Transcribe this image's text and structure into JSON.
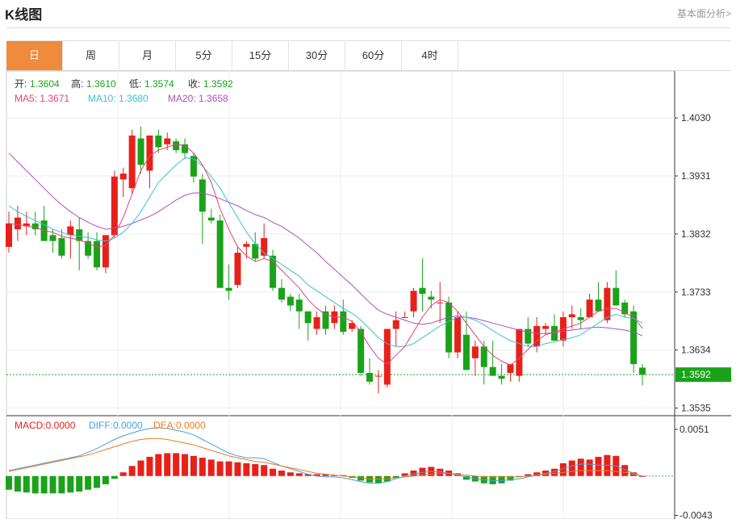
{
  "header": {
    "title": "K线图",
    "link": "基本面分析>"
  },
  "tabs": [
    "日",
    "周",
    "月",
    "5分",
    "15分",
    "30分",
    "60分",
    "4时"
  ],
  "active_tab": 0,
  "ohlc_info": {
    "open_label": "开:",
    "open": "1.3604",
    "high_label": "高:",
    "high": "1.3610",
    "low_label": "低:",
    "low": "1.3574",
    "close_label": "收:",
    "close": "1.3592"
  },
  "ma_info": {
    "ma5": "MA5: 1.3671",
    "ma10": "MA10: 1.3680",
    "ma20": "MA20: 1.3658"
  },
  "macd_info": {
    "macd": "MACD:0.0000",
    "diff": "DIFF:0.0000",
    "dea": "DEA:0.0000"
  },
  "colors": {
    "up": "#e8201a",
    "down": "#1aa31a",
    "ma5": "#e0457a",
    "ma10": "#3cc0d6",
    "ma20": "#b04ec0",
    "accent": "#f08a3c",
    "diff": "#4a9fe0",
    "dea": "#f07a20"
  },
  "chart_data": {
    "type": "candlestick",
    "title": "K线图",
    "price_axis": {
      "ticks": [
        1.403,
        1.3931,
        1.3832,
        1.3733,
        1.3634,
        1.3535
      ],
      "range": [
        1.3522,
        1.411
      ]
    },
    "last_price": 1.3592,
    "last_price_label": "1.3592",
    "candles": [
      [
        1.381,
        1.387,
        1.38,
        1.385
      ],
      [
        1.384,
        1.388,
        1.382,
        1.386
      ],
      [
        1.3845,
        1.387,
        1.383,
        1.385
      ],
      [
        1.385,
        1.387,
        1.383,
        1.384
      ],
      [
        1.3855,
        1.388,
        1.382,
        1.382
      ],
      [
        1.383,
        1.384,
        1.38,
        1.382
      ],
      [
        1.3825,
        1.384,
        1.379,
        1.3795
      ],
      [
        1.383,
        1.3855,
        1.379,
        1.3845
      ],
      [
        1.384,
        1.386,
        1.377,
        1.382
      ],
      [
        1.382,
        1.3835,
        1.379,
        1.3795
      ],
      [
        1.382,
        1.3835,
        1.377,
        1.3775
      ],
      [
        1.3775,
        1.383,
        1.3765,
        1.383
      ],
      [
        1.383,
        1.394,
        1.3825,
        1.393
      ],
      [
        1.3925,
        1.3945,
        1.3895,
        1.3935
      ],
      [
        1.391,
        1.401,
        1.39,
        1.4
      ],
      [
        1.3995,
        1.4015,
        1.3935,
        1.395
      ],
      [
        1.394,
        1.4,
        1.391,
        1.4
      ],
      [
        1.4,
        1.401,
        1.397,
        1.398
      ],
      [
        1.3985,
        1.4005,
        1.3975,
        1.3995
      ],
      [
        1.399,
        1.3995,
        1.397,
        1.3975
      ],
      [
        1.3985,
        1.3995,
        1.396,
        1.397
      ],
      [
        1.3965,
        1.397,
        1.392,
        1.393
      ],
      [
        1.3925,
        1.3935,
        1.3815,
        1.387
      ],
      [
        1.386,
        1.3875,
        1.385,
        1.3855
      ],
      [
        1.3855,
        1.3865,
        1.374,
        1.374
      ],
      [
        1.374,
        1.378,
        1.372,
        1.3735
      ],
      [
        1.3745,
        1.381,
        1.374,
        1.38
      ],
      [
        1.381,
        1.382,
        1.379,
        1.3815
      ],
      [
        1.3815,
        1.3835,
        1.3785,
        1.379
      ],
      [
        1.3795,
        1.385,
        1.379,
        1.3825
      ],
      [
        1.3795,
        1.3805,
        1.3735,
        1.374
      ],
      [
        1.374,
        1.3755,
        1.3715,
        1.372
      ],
      [
        1.3725,
        1.373,
        1.37,
        1.371
      ],
      [
        1.372,
        1.373,
        1.367,
        1.37
      ],
      [
        1.37,
        1.37,
        1.365,
        1.368
      ],
      [
        1.367,
        1.37,
        1.366,
        1.369
      ],
      [
        1.37,
        1.371,
        1.366,
        1.367
      ],
      [
        1.368,
        1.371,
        1.367,
        1.37
      ],
      [
        1.37,
        1.372,
        1.366,
        1.3665
      ],
      [
        1.367,
        1.3685,
        1.3665,
        1.368
      ],
      [
        1.367,
        1.3675,
        1.359,
        1.3595
      ],
      [
        1.3595,
        1.362,
        1.3575,
        1.358
      ],
      [
        1.359,
        1.36,
        1.356,
        1.359
      ],
      [
        1.3575,
        1.367,
        1.357,
        1.367
      ],
      [
        1.367,
        1.37,
        1.364,
        1.3685
      ],
      [
        1.369,
        1.37,
        1.369,
        1.369
      ],
      [
        1.37,
        1.374,
        1.369,
        1.3735
      ],
      [
        1.374,
        1.379,
        1.37,
        1.373
      ],
      [
        1.3725,
        1.3735,
        1.3705,
        1.372
      ],
      [
        1.3715,
        1.375,
        1.368,
        1.3715
      ],
      [
        1.3715,
        1.3725,
        1.362,
        1.363
      ],
      [
        1.363,
        1.37,
        1.362,
        1.369
      ],
      [
        1.366,
        1.37,
        1.36,
        1.36
      ],
      [
        1.362,
        1.365,
        1.359,
        1.364
      ],
      [
        1.364,
        1.365,
        1.3575,
        1.3605
      ],
      [
        1.3605,
        1.365,
        1.359,
        1.359
      ],
      [
        1.359,
        1.361,
        1.3575,
        1.3585
      ],
      [
        1.3595,
        1.361,
        1.358,
        1.361
      ],
      [
        1.359,
        1.367,
        1.358,
        1.367
      ],
      [
        1.367,
        1.369,
        1.364,
        1.3645
      ],
      [
        1.364,
        1.369,
        1.363,
        1.3675
      ],
      [
        1.367,
        1.368,
        1.366,
        1.3675
      ],
      [
        1.3675,
        1.3695,
        1.365,
        1.365
      ],
      [
        1.365,
        1.37,
        1.364,
        1.369
      ],
      [
        1.369,
        1.371,
        1.367,
        1.3695
      ],
      [
        1.369,
        1.3705,
        1.367,
        1.3685
      ],
      [
        1.369,
        1.373,
        1.369,
        1.372
      ],
      [
        1.372,
        1.375,
        1.37,
        1.37
      ],
      [
        1.3685,
        1.375,
        1.368,
        1.374
      ],
      [
        1.374,
        1.377,
        1.371,
        1.371
      ],
      [
        1.3715,
        1.372,
        1.369,
        1.3695
      ],
      [
        1.37,
        1.371,
        1.3595,
        1.361
      ],
      [
        1.3604,
        1.361,
        1.3574,
        1.3592
      ]
    ],
    "ma5": [
      1.385,
      1.3848,
      1.3846,
      1.3843,
      1.3838,
      1.3835,
      1.3828,
      1.3825,
      1.3822,
      1.3816,
      1.381,
      1.3812,
      1.383,
      1.386,
      1.39,
      1.394,
      1.3965,
      1.3975,
      1.398,
      1.3985,
      1.3983,
      1.397,
      1.395,
      1.392,
      1.3875,
      1.384,
      1.381,
      1.3795,
      1.3785,
      1.379,
      1.3785,
      1.377,
      1.3755,
      1.374,
      1.372,
      1.3705,
      1.3695,
      1.369,
      1.369,
      1.3683,
      1.3665,
      1.364,
      1.362,
      1.361,
      1.3625,
      1.364,
      1.3665,
      1.369,
      1.371,
      1.372,
      1.3715,
      1.37,
      1.368,
      1.366,
      1.364,
      1.3625,
      1.3615,
      1.3608,
      1.362,
      1.3635,
      1.365,
      1.366,
      1.3665,
      1.367,
      1.3675,
      1.368,
      1.369,
      1.37,
      1.3705,
      1.3705,
      1.3698,
      1.369,
      1.3671
    ],
    "ma10": [
      1.388,
      1.387,
      1.3862,
      1.3855,
      1.3848,
      1.384,
      1.3835,
      1.383,
      1.3828,
      1.3826,
      1.3822,
      1.382,
      1.3825,
      1.3835,
      1.385,
      1.387,
      1.3895,
      1.392,
      1.3935,
      1.395,
      1.3962,
      1.396,
      1.3948,
      1.393,
      1.391,
      1.3885,
      1.386,
      1.3835,
      1.3815,
      1.38,
      1.379,
      1.378,
      1.377,
      1.376,
      1.3745,
      1.3735,
      1.3725,
      1.3715,
      1.3705,
      1.3697,
      1.3685,
      1.367,
      1.3655,
      1.3645,
      1.364,
      1.364,
      1.3645,
      1.3655,
      1.3665,
      1.3675,
      1.3683,
      1.369,
      1.369,
      1.3685,
      1.3677,
      1.3667,
      1.3658,
      1.365,
      1.3645,
      1.364,
      1.364,
      1.3645,
      1.3648,
      1.3652,
      1.3655,
      1.366,
      1.367,
      1.368,
      1.369,
      1.3695,
      1.369,
      1.3688,
      1.368
    ],
    "ma20": [
      1.397,
      1.3955,
      1.394,
      1.3925,
      1.391,
      1.3895,
      1.3882,
      1.387,
      1.386,
      1.3852,
      1.3845,
      1.384,
      1.3842,
      1.3845,
      1.385,
      1.3856,
      1.3862,
      1.387,
      1.388,
      1.389,
      1.3898,
      1.3902,
      1.3902,
      1.3898,
      1.3892,
      1.3886,
      1.388,
      1.3872,
      1.3865,
      1.386,
      1.3852,
      1.3845,
      1.3835,
      1.3825,
      1.3812,
      1.38,
      1.3785,
      1.3772,
      1.3758,
      1.3745,
      1.373,
      1.3715,
      1.3702,
      1.3695,
      1.369,
      1.3685,
      1.368,
      1.3678,
      1.368,
      1.3685,
      1.369,
      1.3692,
      1.369,
      1.3688,
      1.3684,
      1.368,
      1.3676,
      1.3672,
      1.3668,
      1.3665,
      1.3662,
      1.3662,
      1.3664,
      1.3666,
      1.3668,
      1.367,
      1.3672,
      1.3673,
      1.3672,
      1.367,
      1.3668,
      1.3665,
      1.3658
    ],
    "macd_axis": {
      "ticks": [
        0.0051,
        -0.0043
      ],
      "tick_labels": [
        "0.0051",
        "-0.0043"
      ],
      "range": [
        -0.0047,
        0.0066
      ]
    },
    "macd_hist": [
      -0.0015,
      -0.0017,
      -0.0018,
      -0.0019,
      -0.0019,
      -0.0019,
      -0.0019,
      -0.0018,
      -0.0017,
      -0.0015,
      -0.0013,
      -0.0009,
      -0.0003,
      0.0004,
      0.0011,
      0.0017,
      0.0021,
      0.0024,
      0.0025,
      0.0025,
      0.0024,
      0.0022,
      0.002,
      0.0018,
      0.0016,
      0.0016,
      0.0015,
      0.0014,
      0.0013,
      0.0012,
      0.0008,
      0.0006,
      0.0004,
      0.0003,
      0.0002,
      0.0002,
      0.0002,
      0.0001,
      0.0001,
      -0.0002,
      -0.0005,
      -0.0007,
      -0.0008,
      -0.0006,
      -0.0002,
      0.0003,
      0.0006,
      0.0009,
      0.001,
      0.0008,
      0.0006,
      0.0003,
      -0.0004,
      -0.0006,
      -0.0008,
      -0.0009,
      -0.0008,
      -0.0005,
      -0.0001,
      0.0002,
      0.0004,
      0.0006,
      0.0008,
      0.0014,
      0.0017,
      0.0019,
      0.0018,
      0.0021,
      0.0023,
      0.0022,
      0.0012,
      0.0004,
      0.0
    ],
    "diff": [
      0.0006,
      0.0008,
      0.001,
      0.0012,
      0.0014,
      0.0016,
      0.0018,
      0.002,
      0.0022,
      0.0026,
      0.003,
      0.0035,
      0.004,
      0.0044,
      0.0047,
      0.005,
      0.0052,
      0.0053,
      0.0052,
      0.005,
      0.0048,
      0.0045,
      0.004,
      0.0035,
      0.003,
      0.0025,
      0.0022,
      0.002,
      0.002,
      0.0019,
      0.0015,
      0.0011,
      0.0008,
      0.0005,
      0.0002,
      0.0,
      -0.0001,
      -0.0001,
      -0.0002,
      -0.0004,
      -0.0006,
      -0.0008,
      -0.0008,
      -0.0006,
      -0.0003,
      0.0,
      0.0002,
      0.0004,
      0.0005,
      0.0005,
      0.0003,
      0.0001,
      -0.0001,
      -0.0003,
      -0.0004,
      -0.0005,
      -0.0005,
      -0.0004,
      -0.0003,
      -0.0001,
      0.0001,
      0.0003,
      0.0005,
      0.0008,
      0.0011,
      0.0013,
      0.0013,
      0.0012,
      0.0012,
      0.0011,
      0.0007,
      0.0003,
      0.0
    ],
    "dea": [
      0.0005,
      0.0007,
      0.0009,
      0.0011,
      0.0013,
      0.0015,
      0.0017,
      0.0019,
      0.0021,
      0.0023,
      0.0026,
      0.0029,
      0.0032,
      0.0035,
      0.0038,
      0.004,
      0.0041,
      0.0041,
      0.004,
      0.0038,
      0.0036,
      0.0034,
      0.0031,
      0.0028,
      0.0025,
      0.0022,
      0.002,
      0.0018,
      0.0016,
      0.0015,
      0.0013,
      0.0011,
      0.0009,
      0.0007,
      0.0005,
      0.0003,
      0.0002,
      0.0001,
      0.0,
      -0.0001,
      -0.0002,
      -0.0003,
      -0.0003,
      -0.0003,
      -0.0002,
      -0.0001,
      0.0,
      0.0001,
      0.0002,
      0.0003,
      0.0003,
      0.0002,
      0.0001,
      0.0,
      -0.0001,
      -0.0001,
      -0.0001,
      -0.0001,
      -0.0001,
      0.0,
      0.0001,
      0.0002,
      0.0003,
      0.0004,
      0.0005,
      0.0006,
      0.0006,
      0.0006,
      0.0006,
      0.0005,
      0.0004,
      0.0002,
      0.0
    ]
  }
}
